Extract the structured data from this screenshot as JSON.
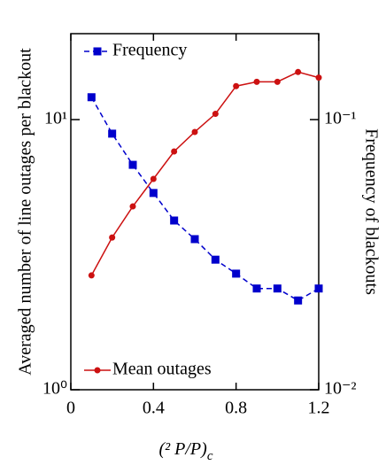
{
  "chart_data": {
    "type": "line",
    "x_label": "(² P/P)",
    "x_label_subscript": "c",
    "y_label": "Averaged number of line outages per blackout",
    "y2_label": "Frequency of blackouts",
    "x": [
      0.1,
      0.2,
      0.3,
      0.4,
      0.5,
      0.6,
      0.7,
      0.8,
      0.9,
      1.0,
      1.1,
      1.2
    ],
    "xlim": [
      0,
      1.2
    ],
    "xticks": [
      0,
      0.4,
      0.8,
      1.2
    ],
    "ylim": [
      1,
      20.8
    ],
    "yticks": [
      {
        "value": 1,
        "label": "10⁰"
      },
      {
        "value": 10,
        "label": "10¹"
      }
    ],
    "y2lim": [
      0.01,
      0.208
    ],
    "y2ticks": [
      {
        "value": 0.01,
        "label": "10⁻²"
      },
      {
        "value": 0.1,
        "label": "10⁻¹"
      }
    ],
    "ylog": true,
    "y2log": true,
    "grid": false,
    "series": [
      {
        "name": "Frequency",
        "color": "#0000cc",
        "axis": "y2",
        "dash": true,
        "marker": "square",
        "legend_loc": "upper left",
        "values": [
          0.121,
          0.0887,
          0.068,
          0.0535,
          0.0423,
          0.0361,
          0.0303,
          0.0269,
          0.0237,
          0.0237,
          0.0214,
          0.0237
        ]
      },
      {
        "name": "Mean outages",
        "color": "#cc1111",
        "axis": "y",
        "dash": false,
        "marker": "circle",
        "legend_loc": "lower left",
        "values": [
          2.65,
          3.66,
          4.77,
          6.03,
          7.62,
          9.0,
          10.5,
          13.3,
          13.8,
          13.8,
          15.0,
          14.3
        ]
      }
    ]
  }
}
